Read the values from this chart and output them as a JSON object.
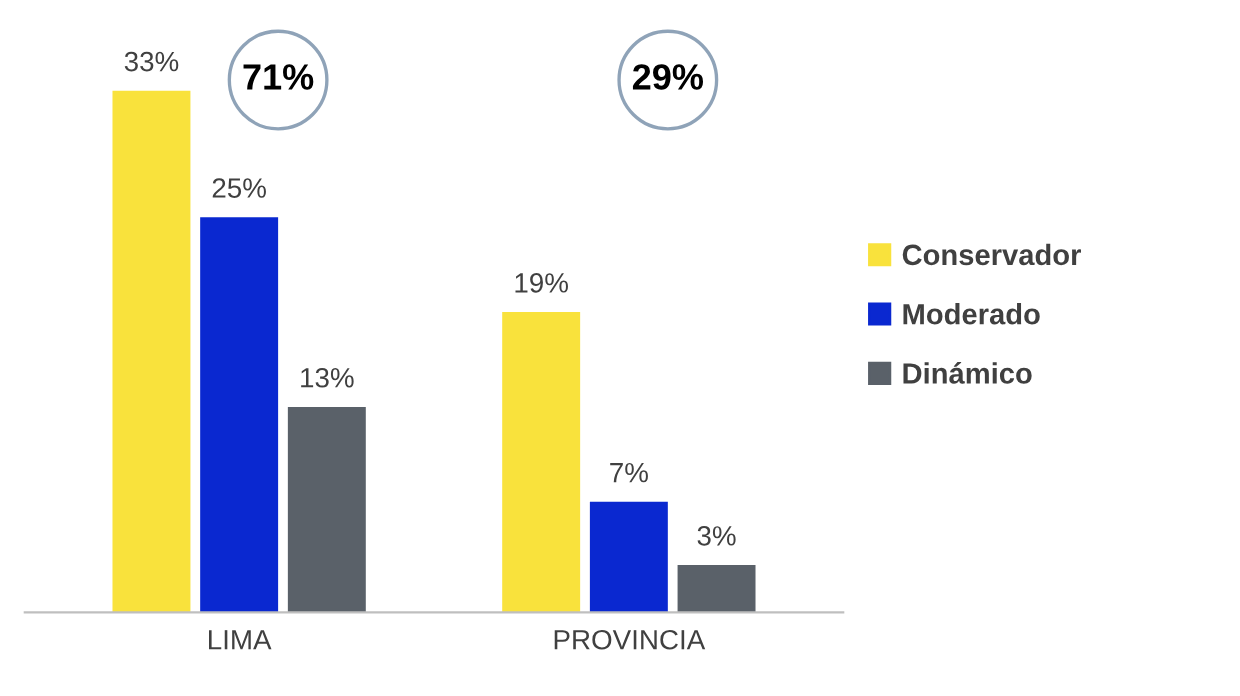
{
  "chart_data": {
    "type": "bar",
    "categories": [
      "LIMA",
      "PROVINCIA"
    ],
    "series": [
      {
        "name": "Conservador",
        "color": "#f9e23c",
        "values": [
          33,
          19
        ],
        "value_labels": [
          "33%",
          "19%"
        ]
      },
      {
        "name": "Moderado",
        "color": "#0a28d0",
        "values": [
          25,
          7
        ],
        "value_labels": [
          "25%",
          "7%"
        ]
      },
      {
        "name": "Dinámico",
        "color": "#5a6169",
        "values": [
          13,
          3
        ],
        "value_labels": [
          "13%",
          "3%"
        ]
      }
    ],
    "annotations": [
      "71%",
      "29%"
    ],
    "legend": "right",
    "grid": false
  }
}
